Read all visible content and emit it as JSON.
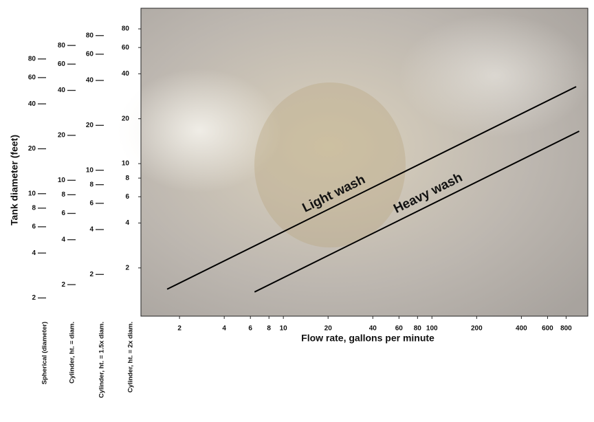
{
  "chart_data": {
    "type": "line",
    "x_label": "Flow rate, gallons per minute",
    "y_label": "Tank diameter (feet)",
    "log_x": true,
    "log_y": true,
    "xlim": [
      1.1,
      1120
    ],
    "xticks": [
      2,
      4,
      6,
      8,
      10,
      20,
      40,
      60,
      80,
      100,
      200,
      400,
      600,
      800
    ],
    "ylim": [
      0.95,
      110
    ],
    "yticks": [
      2,
      4,
      6,
      8,
      10,
      20,
      40,
      60,
      80
    ],
    "y_scale_name": "Cylinder, ht. = 2x diam.",
    "y_scales": [
      {
        "name": "Spherical (diameter)",
        "ylim": [
          1.51,
          175
        ],
        "yticks": [
          2,
          4,
          6,
          8,
          10,
          20,
          40,
          60,
          80
        ]
      },
      {
        "name": "Cylinder, ht. = diam.",
        "ylim": [
          1.23,
          142
        ],
        "yticks": [
          2,
          4,
          6,
          8,
          10,
          20,
          40,
          60,
          80
        ]
      },
      {
        "name": "Cylinder, ht. = 1.5x diam.",
        "ylim": [
          1.05,
          122
        ],
        "yticks": [
          2,
          4,
          6,
          8,
          10,
          20,
          40,
          60,
          80
        ]
      }
    ],
    "series": [
      {
        "name": "Light wash",
        "color": "#000000",
        "x": [
          1.65,
          935
        ],
        "values": [
          1.44,
          32.8
        ]
      },
      {
        "name": "Heavy wash",
        "color": "#000000",
        "x": [
          6.4,
          980
        ],
        "values": [
          1.38,
          16.5
        ]
      }
    ]
  }
}
